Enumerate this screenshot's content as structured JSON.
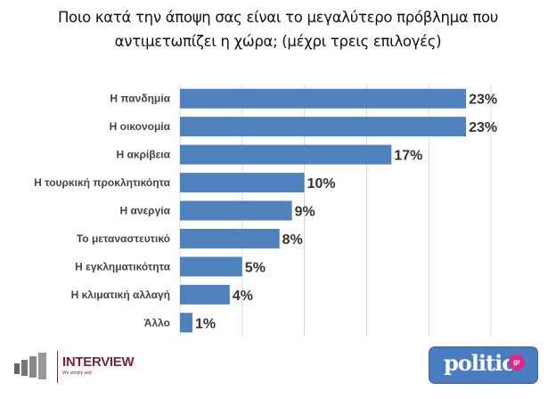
{
  "chart_data": {
    "type": "bar",
    "orientation": "horizontal",
    "title": "Ποιο κατά την άποψη σας είναι το μεγαλύτερο πρόβλημα που αντιμετωπίζει η χώρα; (μέχρι τρεις επιλογές)",
    "title_lines": [
      "Ποιο κατά την άποψη σας είναι το μεγαλύτερο πρόβλημα που",
      "αντιμετωπίζει η χώρα; (μέχρι τρεις επιλογές)"
    ],
    "categories": [
      "Η πανδημία",
      "Η οικονομία",
      "Η ακρίβεια",
      "Η τουρκική προκλητικόητα",
      "Η ανεργία",
      "Το μεταναστευτικό",
      "Η εγκληματικότητα",
      "Η κλιματική αλλαγή",
      "Άλλο"
    ],
    "values": [
      23,
      23,
      17,
      10,
      9,
      8,
      5,
      4,
      1
    ],
    "data_labels": [
      "23%",
      "23%",
      "17%",
      "10%",
      "9%",
      "8%",
      "5%",
      "4%",
      "1%"
    ],
    "xlim": [
      0,
      25
    ],
    "grid": true,
    "bar_color": "#4f81bd",
    "xlabel": "",
    "ylabel": ""
  },
  "logos": {
    "left": {
      "name": "INTERVIEW",
      "tagline": "We simply ask!",
      "color": "#7a1f3d"
    },
    "right": {
      "name": "politic",
      "badge": "gr",
      "color": "#4a7cc2",
      "badge_color": "#e0248a"
    }
  }
}
